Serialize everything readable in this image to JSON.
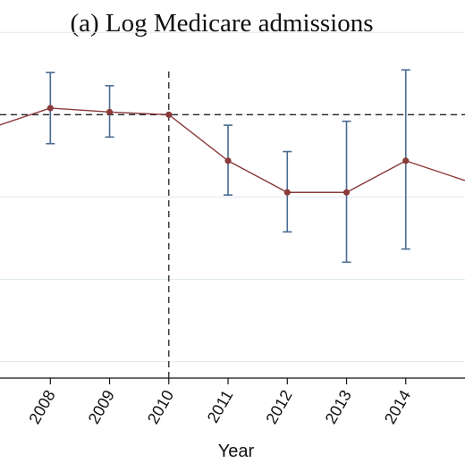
{
  "chart_data": {
    "type": "line",
    "title": "(a) Log Medicare admissions",
    "xlabel": "Year",
    "ylabel": "",
    "x": [
      2007,
      2008,
      2009,
      2010,
      2011,
      2012,
      2013,
      2014,
      2015
    ],
    "tick_labels": [
      "2008",
      "2009",
      "2010",
      "2011",
      "2012",
      "2013",
      "2014"
    ],
    "xlim": [
      2007.15,
      2015.0
    ],
    "ylim": [
      -0.2,
      0.045
    ],
    "series": [
      {
        "values": [
          -0.01,
          0.005,
          0.002,
          0.0,
          -0.035,
          -0.059,
          -0.059,
          -0.035,
          -0.05
        ],
        "ci_lower": [
          null,
          -0.022,
          -0.017,
          null,
          -0.061,
          -0.089,
          -0.112,
          -0.102,
          null
        ],
        "ci_upper": [
          null,
          0.032,
          0.022,
          null,
          -0.008,
          -0.028,
          -0.005,
          0.034,
          null
        ],
        "color": "#8b3a3a",
        "ci_color": "#4a6a8f"
      }
    ],
    "reference_lines": {
      "horizontal_y": 0,
      "vertical_x": 2010
    },
    "grid": true,
    "grid_y": [
      0.0625,
      0.0,
      -0.0625,
      -0.125,
      -0.1875
    ],
    "grid_color": "#dfe9ef"
  }
}
